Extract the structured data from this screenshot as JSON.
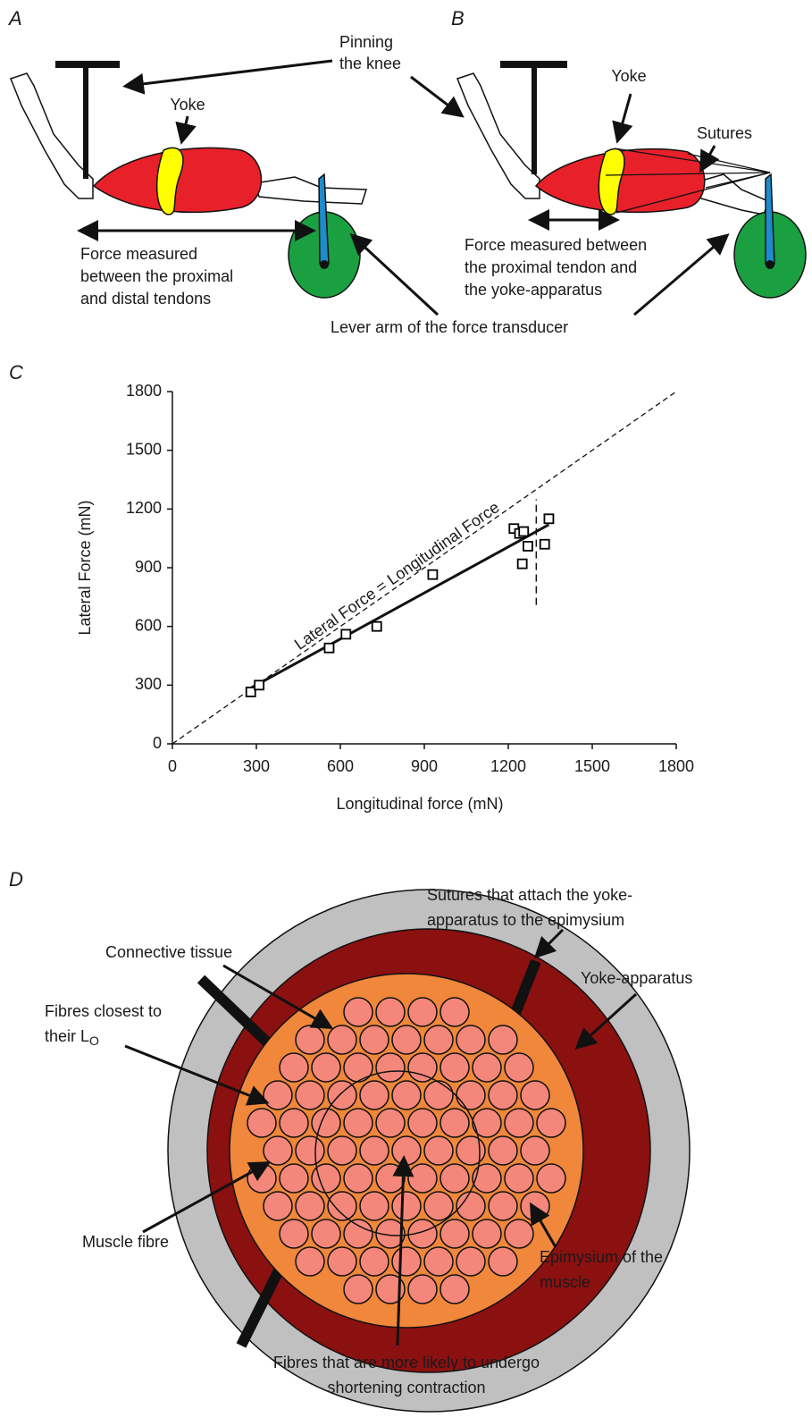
{
  "panel_a": {
    "label": "A",
    "pin_label": [
      "Pinning",
      "the knee"
    ],
    "yoke_label": "Yoke",
    "force_label": [
      "Force measured",
      "between the proximal",
      "and distal tendons"
    ]
  },
  "panel_b": {
    "label": "B",
    "yoke_label": "Yoke",
    "sutures_label": "Sutures",
    "force_label": [
      "Force measured between",
      "the proximal tendon and",
      "the yoke-apparatus"
    ],
    "lever_label": "Lever arm of the force transducer"
  },
  "chart_data": {
    "type": "scatter",
    "panel_label": "C",
    "x_label": "Longitudinal force (mN)",
    "y_label": "Lateral Force (mN)",
    "x": [
      280,
      310,
      560,
      620,
      730,
      930,
      1220,
      1240,
      1255,
      1250,
      1270,
      1330,
      1345
    ],
    "y": [
      265,
      300,
      490,
      560,
      600,
      865,
      1100,
      1075,
      1085,
      920,
      1010,
      1020,
      1150
    ],
    "marker": "square",
    "color": "#000000",
    "xlim": [
      0,
      1800
    ],
    "ylim": [
      0,
      1800
    ],
    "xticks": [
      0,
      300,
      600,
      900,
      1200,
      1500,
      1800
    ],
    "yticks": [
      0,
      300,
      600,
      900,
      1200,
      1500,
      1800
    ],
    "reference_line": {
      "label": "Lateral Force = Longitudinal Force",
      "x": [
        0,
        1800
      ],
      "y": [
        0,
        1800
      ]
    },
    "fit_line": {
      "x": [
        280,
        1345
      ],
      "y": [
        285,
        1120
      ]
    },
    "threshold_line": {
      "x": [
        1300,
        1300
      ],
      "y": [
        710,
        1250
      ]
    }
  },
  "panel_d": {
    "label": "D",
    "sutures_label": [
      "Sutures that attach the yoke-",
      "apparatus to the epimysium"
    ],
    "connective_label": "Connective tissue",
    "yoke_label": "Yoke-apparatus",
    "closest_label": [
      "Fibres closest to",
      "their L"
    ],
    "closest_subscript": "O",
    "fibre_label": "Muscle fibre",
    "epimysium_label": [
      "Epimysium of the",
      "muscle"
    ],
    "shortening_label": [
      "Fibres that are more likely to undergo",
      "shortening contraction"
    ]
  }
}
